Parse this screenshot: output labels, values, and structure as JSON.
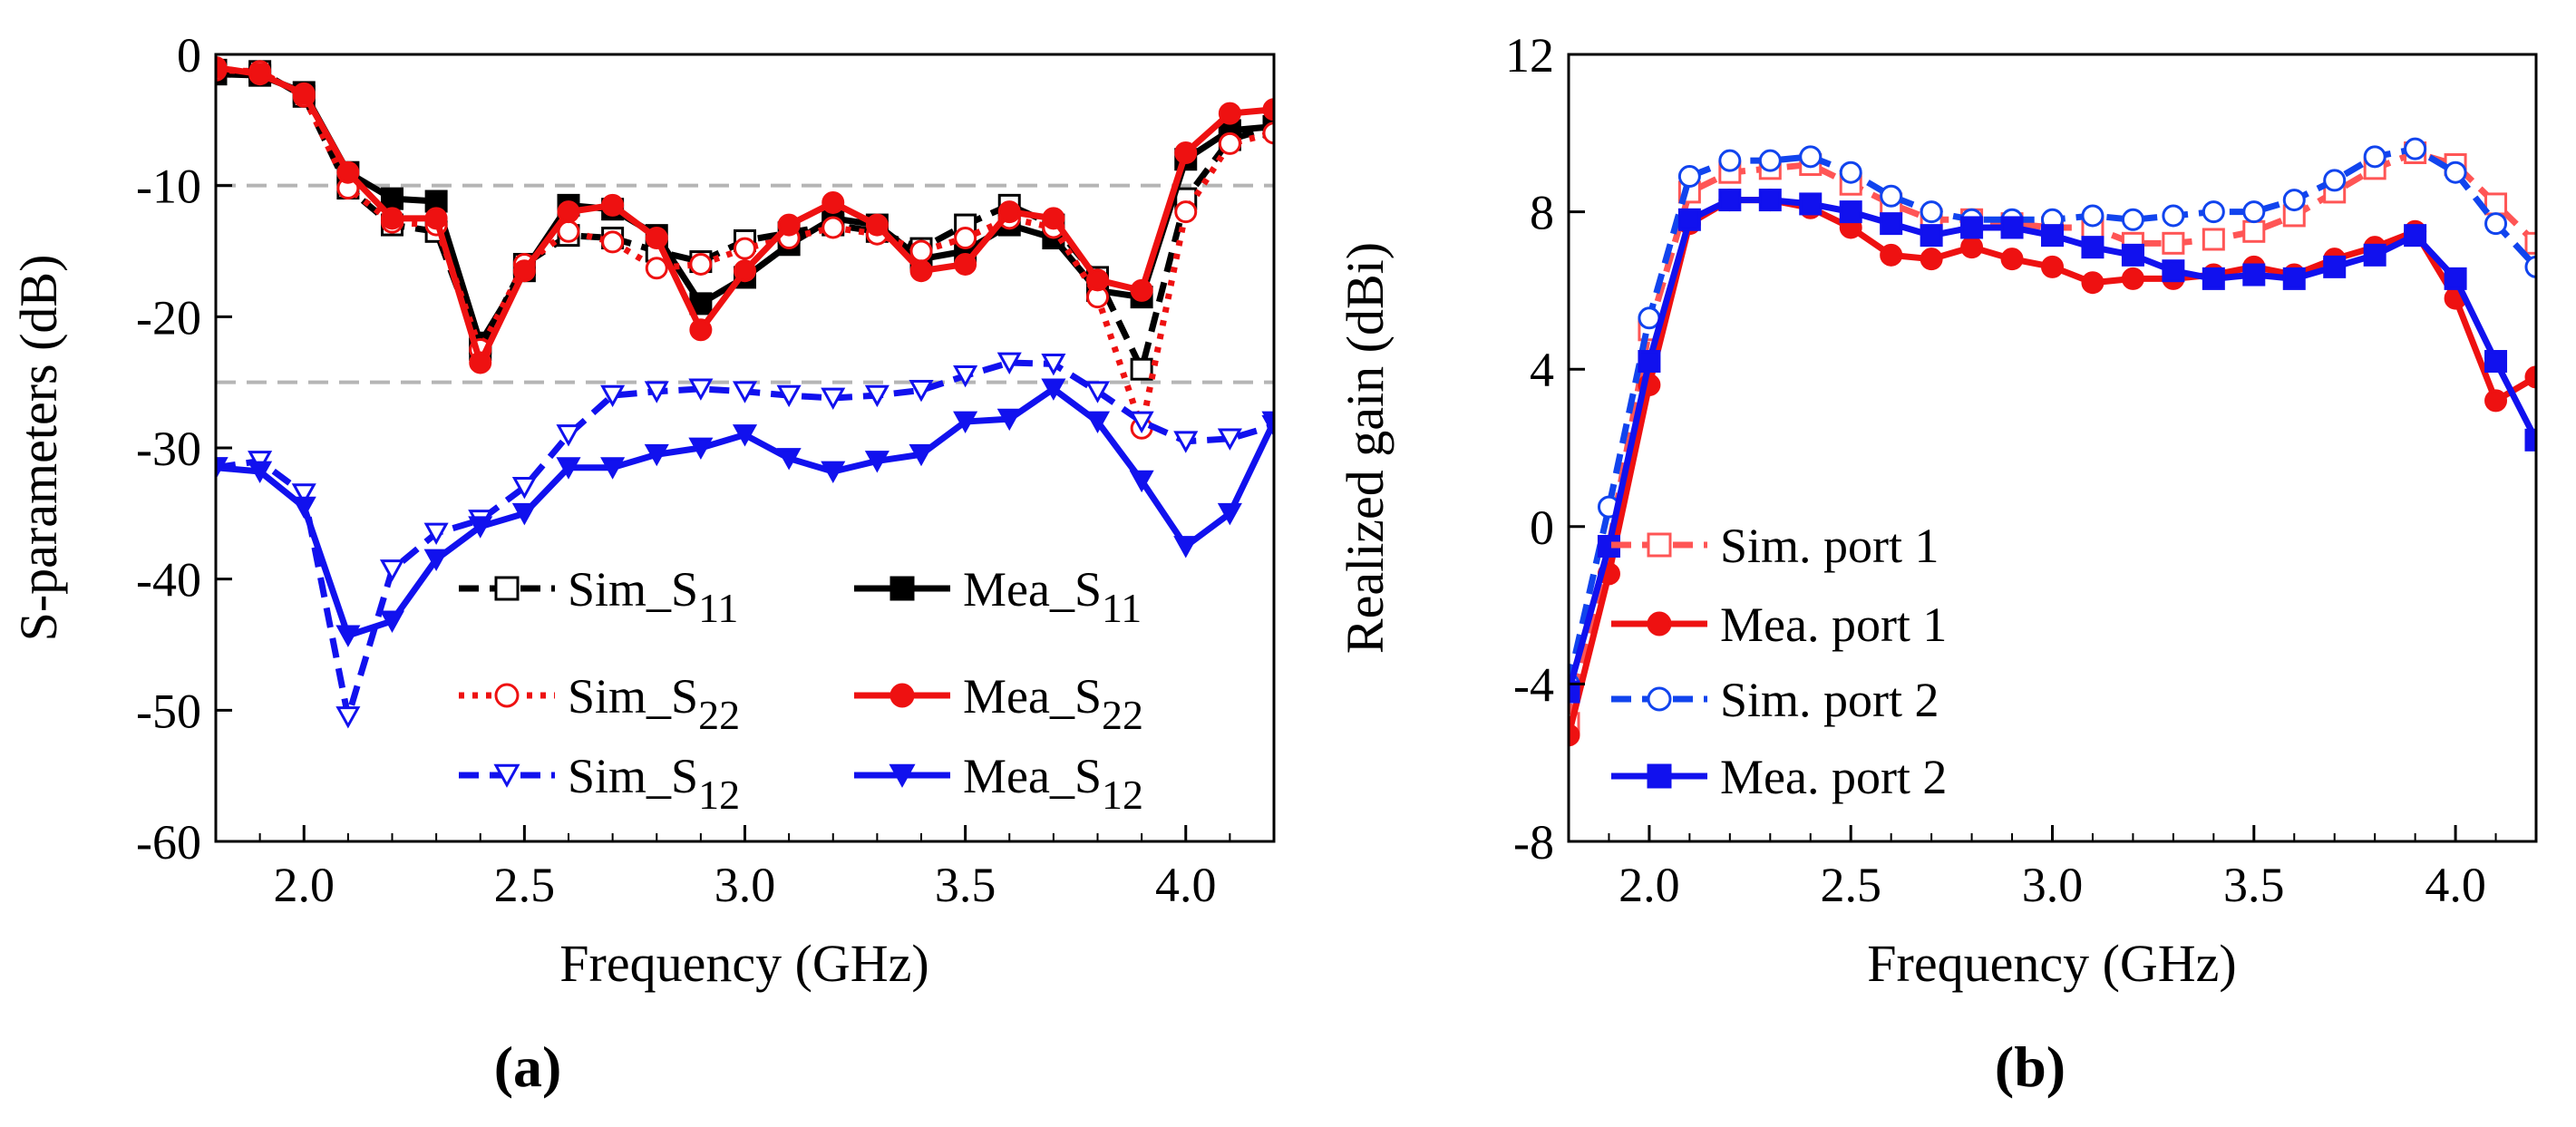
{
  "chart_data": [
    {
      "type": "line",
      "panel_label": "(a)",
      "xlabel": "Frequency (GHz)",
      "ylabel": "S-parameters (dB)",
      "xlim": [
        1.8,
        4.2
      ],
      "ylim": [
        -60,
        0
      ],
      "xticks": [
        2.0,
        2.5,
        3.0,
        3.5,
        4.0
      ],
      "yticks": [
        0,
        -10,
        -20,
        -30,
        -40,
        -50,
        -60
      ],
      "xtick_labels": [
        "2.0",
        "2.5",
        "3.0",
        "3.5",
        "4.0"
      ],
      "ytick_labels": [
        "0",
        "-10",
        "-20",
        "-30",
        "-40",
        "-50",
        "-60"
      ],
      "reference_lines": [
        -10,
        -25
      ],
      "legend_position": "bottom-right",
      "series": [
        {
          "name": "Sim_S11",
          "label_main": "Sim_S",
          "label_sub": "11",
          "color": "#000000",
          "dash": "dash",
          "marker": "square-open",
          "x": [
            1.8,
            1.9,
            2.0,
            2.1,
            2.2,
            2.3,
            2.4,
            2.5,
            2.6,
            2.7,
            2.8,
            2.9,
            3.0,
            3.1,
            3.2,
            3.3,
            3.4,
            3.5,
            3.6,
            3.7,
            3.8,
            3.9,
            4.0,
            4.1,
            4.2
          ],
          "y": [
            -1.2,
            -1.3,
            -3.2,
            -10.2,
            -13.0,
            -13.5,
            -22.5,
            -16.0,
            -13.8,
            -14.0,
            -15.0,
            -15.8,
            -14.2,
            -13.6,
            -13.0,
            -13.5,
            -14.8,
            -13.0,
            -11.5,
            -13.0,
            -17.0,
            -24.0,
            -11.0,
            -6.5,
            -5.5
          ]
        },
        {
          "name": "Mea_S11",
          "label_main": "Mea_S",
          "label_sub": "11",
          "color": "#000000",
          "dash": "solid",
          "marker": "square-filled",
          "x": [
            1.8,
            1.9,
            2.0,
            2.1,
            2.2,
            2.3,
            2.4,
            2.5,
            2.6,
            2.7,
            2.8,
            2.9,
            3.0,
            3.1,
            3.2,
            3.3,
            3.4,
            3.5,
            3.6,
            3.7,
            3.8,
            3.9,
            4.0,
            4.1,
            4.2
          ],
          "y": [
            -1.5,
            -1.6,
            -2.9,
            -9.0,
            -11.0,
            -11.2,
            -22.0,
            -16.5,
            -11.5,
            -11.8,
            -13.8,
            -19.0,
            -17.0,
            -14.5,
            -12.5,
            -13.0,
            -15.6,
            -15.0,
            -13.0,
            -14.0,
            -18.0,
            -18.5,
            -8.0,
            -5.8,
            -5.5
          ]
        },
        {
          "name": "Sim_S22",
          "label_main": "Sim_S",
          "label_sub": "22",
          "color": "#ee1111",
          "dash": "dot",
          "marker": "circle-open",
          "x": [
            1.8,
            1.9,
            2.0,
            2.1,
            2.2,
            2.3,
            2.4,
            2.5,
            2.6,
            2.7,
            2.8,
            2.9,
            3.0,
            3.1,
            3.2,
            3.3,
            3.4,
            3.5,
            3.6,
            3.7,
            3.8,
            3.9,
            4.0,
            4.1,
            4.2
          ],
          "y": [
            -1.2,
            -1.3,
            -3.2,
            -10.2,
            -12.8,
            -13.0,
            -22.5,
            -16.0,
            -13.5,
            -14.3,
            -16.3,
            -16.0,
            -14.8,
            -14.0,
            -13.2,
            -13.7,
            -15.0,
            -14.0,
            -12.5,
            -13.2,
            -18.5,
            -28.5,
            -12.0,
            -6.8,
            -6.0
          ]
        },
        {
          "name": "Mea_S22",
          "label_main": "Mea_S",
          "label_sub": "22",
          "color": "#ee1111",
          "dash": "solid",
          "marker": "circle-filled",
          "x": [
            1.8,
            1.9,
            2.0,
            2.1,
            2.2,
            2.3,
            2.4,
            2.5,
            2.6,
            2.7,
            2.8,
            2.9,
            3.0,
            3.1,
            3.2,
            3.3,
            3.4,
            3.5,
            3.6,
            3.7,
            3.8,
            3.9,
            4.0,
            4.1,
            4.2
          ],
          "y": [
            -1.0,
            -1.5,
            -3.0,
            -9.0,
            -12.5,
            -12.5,
            -23.5,
            -16.5,
            -12.0,
            -11.5,
            -14.0,
            -21.0,
            -16.5,
            -13.0,
            -11.3,
            -13.0,
            -16.5,
            -16.0,
            -12.0,
            -12.5,
            -17.2,
            -18.0,
            -7.5,
            -4.5,
            -4.2
          ]
        },
        {
          "name": "Sim_S12",
          "label_main": "Sim_S",
          "label_sub": "12",
          "color": "#1111ee",
          "dash": "dash",
          "marker": "triangle-down-open",
          "x": [
            1.8,
            1.9,
            2.0,
            2.1,
            2.2,
            2.3,
            2.4,
            2.5,
            2.6,
            2.7,
            2.8,
            2.9,
            3.0,
            3.1,
            3.2,
            3.3,
            3.4,
            3.5,
            3.6,
            3.7,
            3.8,
            3.9,
            4.0,
            4.1,
            4.2
          ],
          "y": [
            -31.5,
            -31.0,
            -33.5,
            -50.5,
            -39.3,
            -36.5,
            -35.5,
            -33.0,
            -29.0,
            -26.0,
            -25.7,
            -25.5,
            -25.7,
            -26.0,
            -26.2,
            -26.0,
            -25.6,
            -24.5,
            -23.5,
            -23.6,
            -25.7,
            -28.0,
            -29.5,
            -29.3,
            -28.3
          ]
        },
        {
          "name": "Mea_S12",
          "label_main": "Mea_S",
          "label_sub": "12",
          "color": "#1111ee",
          "dash": "solid",
          "marker": "triangle-down-filled",
          "x": [
            1.8,
            1.9,
            2.0,
            2.1,
            2.2,
            2.3,
            2.4,
            2.5,
            2.6,
            2.7,
            2.8,
            2.9,
            3.0,
            3.1,
            3.2,
            3.3,
            3.4,
            3.5,
            3.6,
            3.7,
            3.8,
            3.9,
            4.0,
            4.1,
            4.2
          ],
          "y": [
            -31.5,
            -31.8,
            -34.5,
            -44.3,
            -43.2,
            -38.5,
            -36.0,
            -35.0,
            -31.5,
            -31.5,
            -30.5,
            -30.0,
            -29.0,
            -30.8,
            -31.8,
            -31.0,
            -30.5,
            -28.0,
            -27.8,
            -25.5,
            -28.0,
            -32.5,
            -37.5,
            -35.0,
            -28.0
          ]
        }
      ]
    },
    {
      "type": "line",
      "panel_label": "(b)",
      "xlabel": "Frequency (GHz)",
      "ylabel": "Realized gain (dBi)",
      "xlim": [
        1.8,
        4.2
      ],
      "ylim": [
        -8,
        12
      ],
      "xticks": [
        2.0,
        2.5,
        3.0,
        3.5,
        4.0
      ],
      "yticks": [
        12,
        8,
        4,
        0,
        -4,
        -8
      ],
      "xtick_labels": [
        "2.0",
        "2.5",
        "3.0",
        "3.5",
        "4.0"
      ],
      "ytick_labels": [
        "12",
        "8",
        "4",
        "0",
        "-4",
        "-8"
      ],
      "legend_position": "bottom-left",
      "series": [
        {
          "name": "Sim. port 1",
          "color": "#ff5555",
          "dash": "dash",
          "marker": "square-open",
          "x": [
            1.8,
            1.9,
            2.0,
            2.1,
            2.2,
            2.3,
            2.4,
            2.5,
            2.6,
            2.7,
            2.8,
            2.9,
            3.0,
            3.1,
            3.2,
            3.3,
            3.4,
            3.5,
            3.6,
            3.7,
            3.8,
            3.9,
            4.0,
            4.1,
            4.2
          ],
          "y": [
            -5.0,
            -0.5,
            5.0,
            8.5,
            9.0,
            9.1,
            9.2,
            8.7,
            8.2,
            7.8,
            7.8,
            7.7,
            7.6,
            7.6,
            7.2,
            7.2,
            7.3,
            7.5,
            7.9,
            8.5,
            9.1,
            9.5,
            9.2,
            8.2,
            7.2
          ]
        },
        {
          "name": "Mea. port 1",
          "color": "#ee1111",
          "dash": "solid",
          "marker": "circle-filled",
          "x": [
            1.8,
            1.9,
            2.0,
            2.1,
            2.2,
            2.3,
            2.4,
            2.5,
            2.6,
            2.7,
            2.8,
            2.9,
            3.0,
            3.1,
            3.2,
            3.3,
            3.4,
            3.5,
            3.6,
            3.7,
            3.8,
            3.9,
            4.0,
            4.1,
            4.2
          ],
          "y": [
            -5.3,
            -1.2,
            3.6,
            7.7,
            8.3,
            8.3,
            8.1,
            7.6,
            6.9,
            6.8,
            7.1,
            6.8,
            6.6,
            6.2,
            6.3,
            6.3,
            6.4,
            6.6,
            6.4,
            6.8,
            7.1,
            7.5,
            5.8,
            3.2,
            3.8
          ]
        },
        {
          "name": "Sim. port 2",
          "color": "#1144ee",
          "dash": "dash",
          "marker": "circle-open",
          "x": [
            1.8,
            1.9,
            2.0,
            2.1,
            2.2,
            2.3,
            2.4,
            2.5,
            2.6,
            2.7,
            2.8,
            2.9,
            3.0,
            3.1,
            3.2,
            3.3,
            3.4,
            3.5,
            3.6,
            3.7,
            3.8,
            3.9,
            4.0,
            4.1,
            4.2
          ],
          "y": [
            -4.0,
            0.5,
            5.3,
            8.9,
            9.3,
            9.3,
            9.4,
            9.0,
            8.4,
            8.0,
            7.8,
            7.8,
            7.8,
            7.9,
            7.8,
            7.9,
            8.0,
            8.0,
            8.3,
            8.8,
            9.4,
            9.6,
            9.0,
            7.7,
            6.6
          ]
        },
        {
          "name": "Mea. port 2",
          "color": "#1111ee",
          "dash": "solid",
          "marker": "square-filled",
          "x": [
            1.8,
            1.9,
            2.0,
            2.1,
            2.2,
            2.3,
            2.4,
            2.5,
            2.6,
            2.7,
            2.8,
            2.9,
            3.0,
            3.1,
            3.2,
            3.3,
            3.4,
            3.5,
            3.6,
            3.7,
            3.8,
            3.9,
            4.0,
            4.1,
            4.2
          ],
          "y": [
            -4.2,
            -0.5,
            4.2,
            7.8,
            8.3,
            8.3,
            8.2,
            8.0,
            7.7,
            7.4,
            7.6,
            7.6,
            7.4,
            7.1,
            6.9,
            6.5,
            6.3,
            6.4,
            6.3,
            6.6,
            6.9,
            7.4,
            6.3,
            4.2,
            2.2
          ]
        }
      ]
    }
  ]
}
